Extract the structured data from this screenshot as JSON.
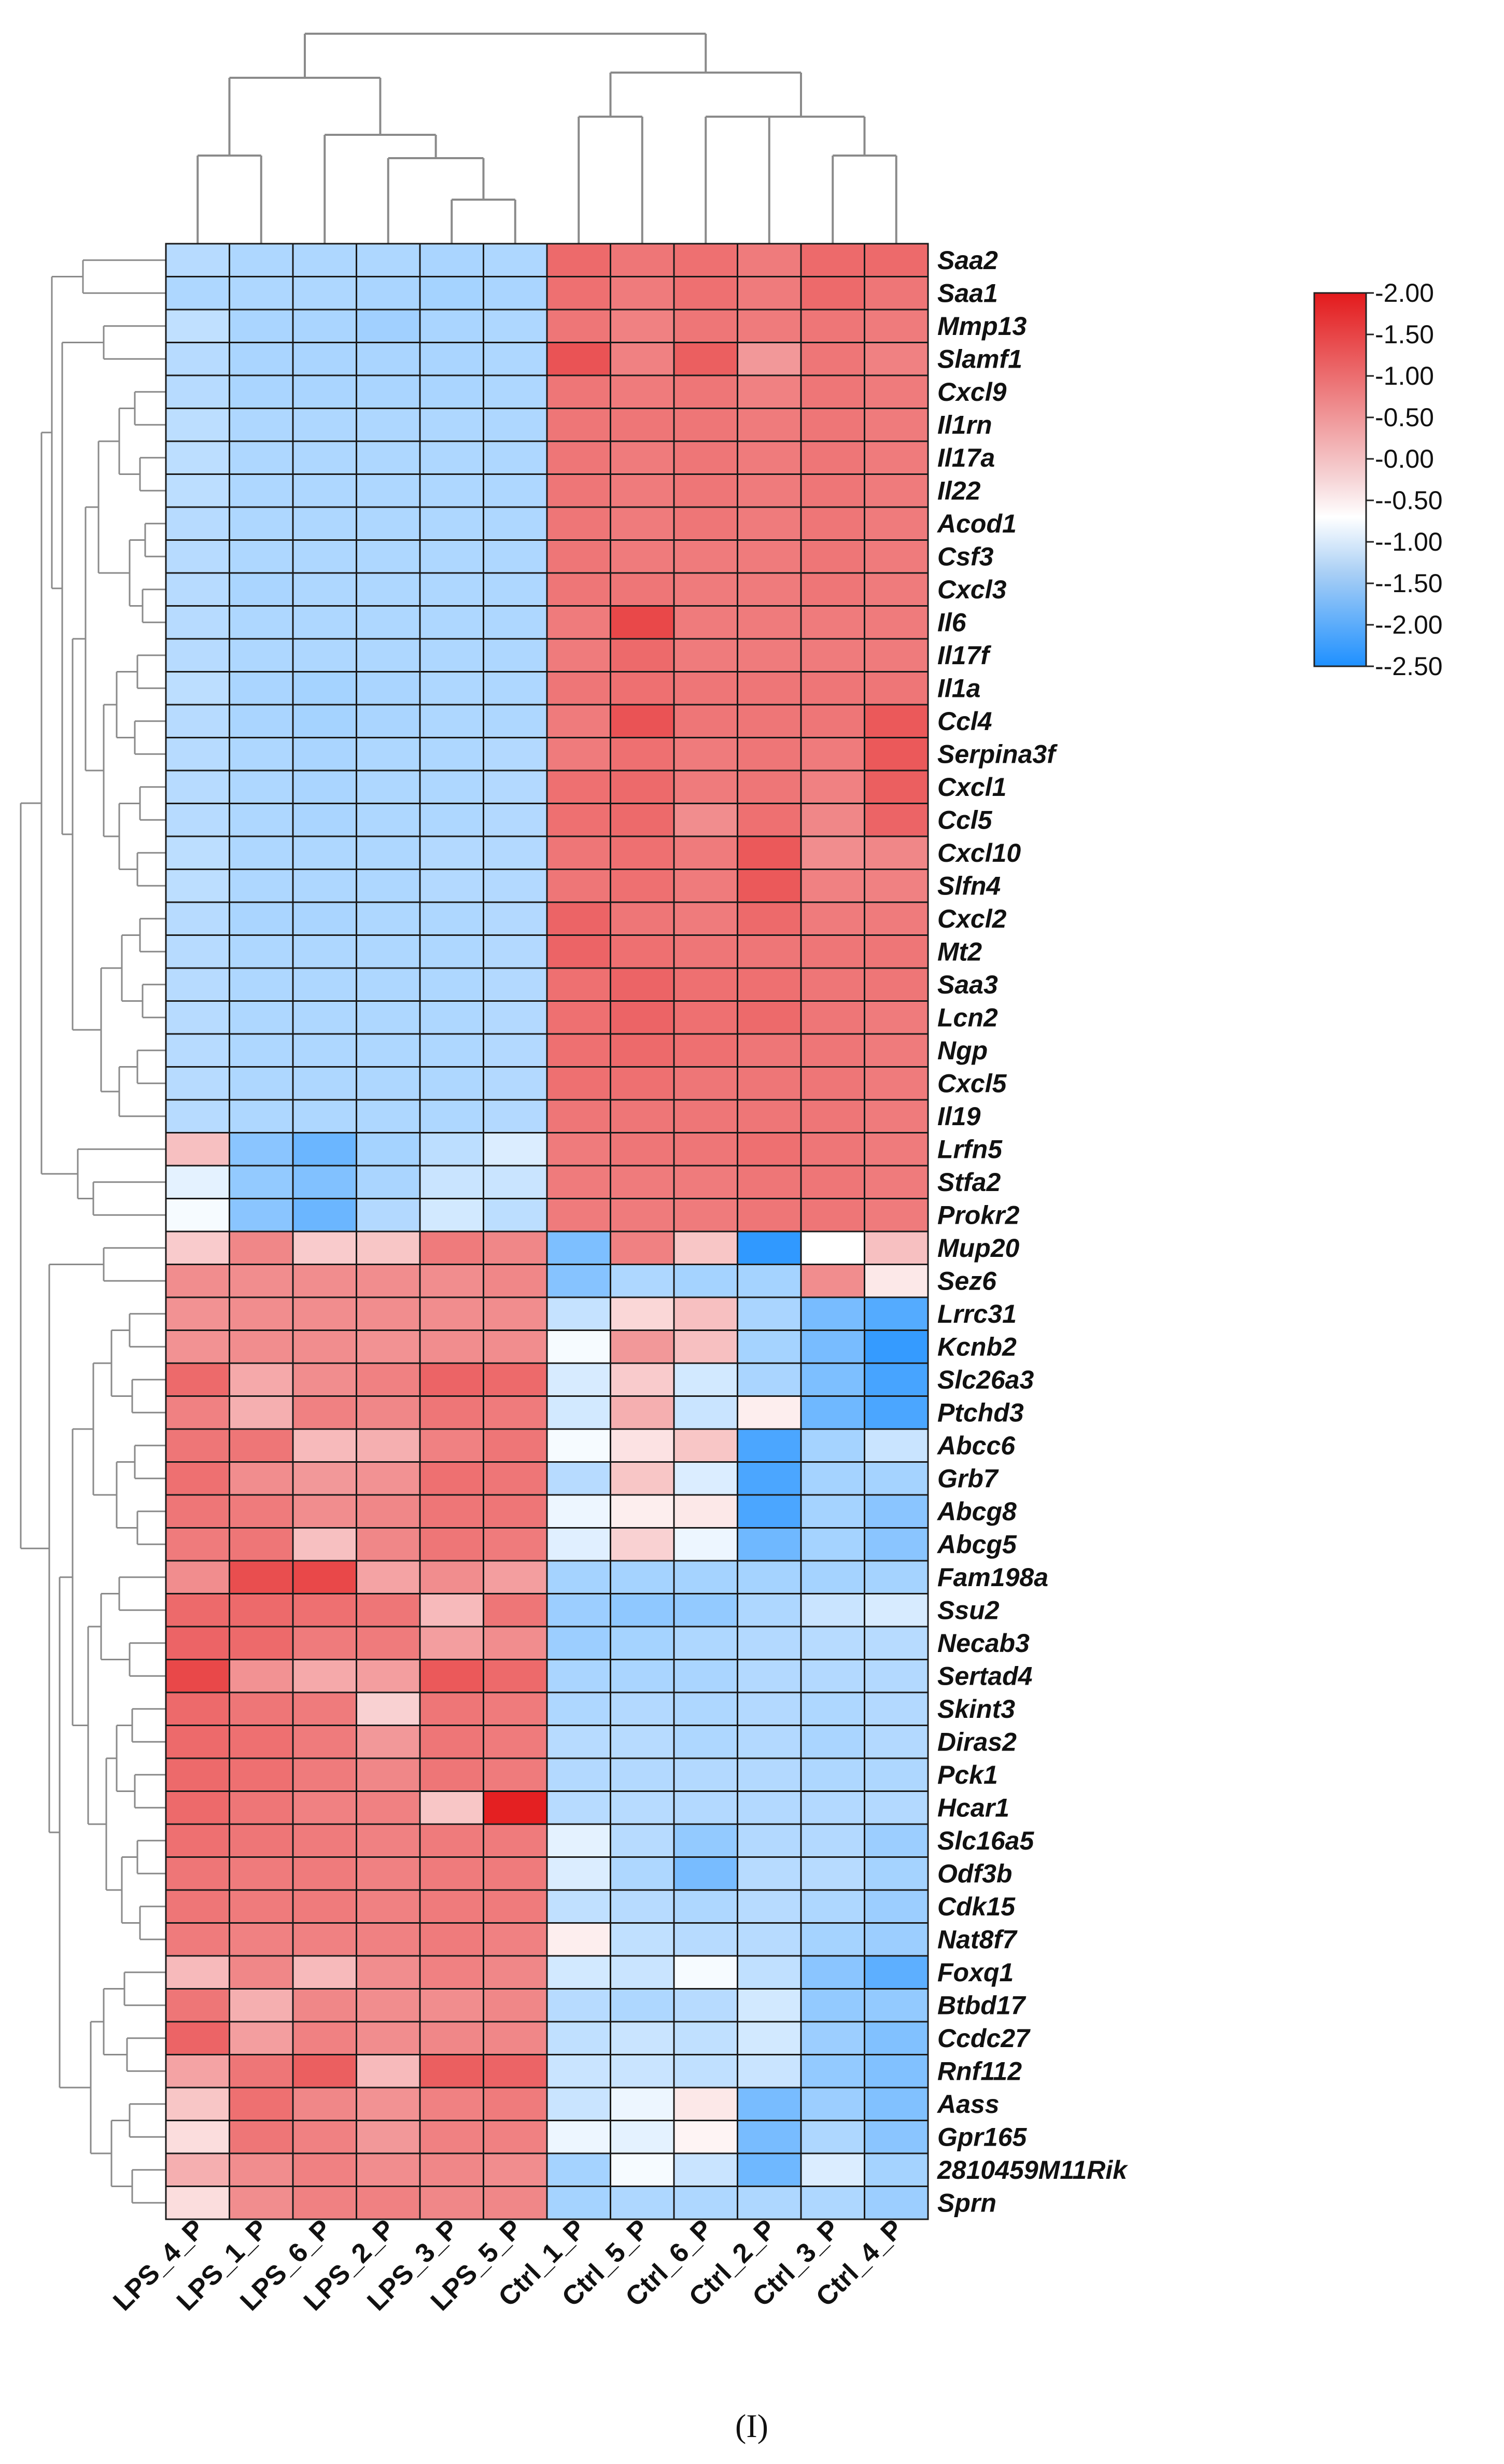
{
  "chart_data": {
    "type": "heatmap",
    "panel_label": "(I)",
    "columns": [
      "LPS_4_P",
      "LPS_1_P",
      "LPS_6_P",
      "LPS_2_P",
      "LPS_3_P",
      "LPS_5_P",
      "Ctrl_1_P",
      "Ctrl_5_P",
      "Ctrl_6_P",
      "Ctrl_2_P",
      "Ctrl_3_P",
      "Ctrl_4_P"
    ],
    "rows": [
      "Saa2",
      "Saa1",
      "Mmp13",
      "Slamf1",
      "Cxcl9",
      "Il1rn",
      "Il17a",
      "Il22",
      "Acod1",
      "Csf3",
      "Cxcl3",
      "Il6",
      "Il17f",
      "Il1a",
      "Ccl4",
      "Serpina3f",
      "Cxcl1",
      "Ccl5",
      "Cxcl10",
      "Slfn4",
      "Cxcl2",
      "Mt2",
      "Saa3",
      "Lcn2",
      "Ngp",
      "Cxcl5",
      "Il19",
      "Lrfn5",
      "Stfa2",
      "Prokr2",
      "Mup20",
      "Sez6",
      "Lrrc31",
      "Kcnb2",
      "Slc26a3",
      "Ptchd3",
      "Abcc6",
      "Grb7",
      "Abcg8",
      "Abcg5",
      "Fam198a",
      "Ssu2",
      "Necab3",
      "Sertad4",
      "Skint3",
      "Diras2",
      "Pck1",
      "Hcar1",
      "Slc16a5",
      "Odf3b",
      "Cdk15",
      "Nat8f7",
      "Foxq1",
      "Btbd17",
      "Ccdc27",
      "Rnf112",
      "Aass",
      "Gpr165",
      "2810459M11Rik",
      "Sprn"
    ],
    "values": [
      [
        -0.8,
        -0.9,
        -0.9,
        -0.9,
        -0.95,
        -0.9,
        1.3,
        1.2,
        1.25,
        1.15,
        1.3,
        1.3
      ],
      [
        -0.9,
        -0.9,
        -0.9,
        -0.95,
        -1.0,
        -0.95,
        1.25,
        1.15,
        1.25,
        1.15,
        1.3,
        1.2
      ],
      [
        -0.7,
        -0.95,
        -0.95,
        -1.05,
        -0.95,
        -0.9,
        1.2,
        1.1,
        1.2,
        1.15,
        1.2,
        1.15
      ],
      [
        -0.8,
        -0.95,
        -0.95,
        -0.95,
        -0.95,
        -0.9,
        1.5,
        1.1,
        1.4,
        0.9,
        1.2,
        1.1
      ],
      [
        -0.8,
        -0.95,
        -0.95,
        -0.95,
        -0.95,
        -0.9,
        1.2,
        1.15,
        1.2,
        1.1,
        1.2,
        1.15
      ],
      [
        -0.75,
        -0.9,
        -0.9,
        -0.9,
        -0.9,
        -0.9,
        1.2,
        1.2,
        1.2,
        1.15,
        1.2,
        1.15
      ],
      [
        -0.75,
        -0.9,
        -0.9,
        -0.9,
        -0.9,
        -0.9,
        1.2,
        1.15,
        1.2,
        1.15,
        1.2,
        1.15
      ],
      [
        -0.75,
        -0.9,
        -0.9,
        -0.9,
        -0.9,
        -0.9,
        1.2,
        1.15,
        1.2,
        1.15,
        1.2,
        1.15
      ],
      [
        -0.8,
        -0.9,
        -0.9,
        -0.9,
        -0.9,
        -0.9,
        1.2,
        1.15,
        1.2,
        1.15,
        1.2,
        1.15
      ],
      [
        -0.8,
        -0.9,
        -0.9,
        -0.9,
        -0.9,
        -0.9,
        1.2,
        1.15,
        1.15,
        1.15,
        1.2,
        1.15
      ],
      [
        -0.8,
        -0.95,
        -0.9,
        -0.9,
        -0.9,
        -0.9,
        1.2,
        1.2,
        1.15,
        1.15,
        1.2,
        1.15
      ],
      [
        -0.8,
        -0.9,
        -0.9,
        -0.9,
        -0.9,
        -0.9,
        1.15,
        1.6,
        1.15,
        1.15,
        1.15,
        1.15
      ],
      [
        -0.8,
        -0.9,
        -0.9,
        -0.9,
        -0.9,
        -0.9,
        1.15,
        1.3,
        1.15,
        1.15,
        1.15,
        1.15
      ],
      [
        -0.75,
        -0.95,
        -1.0,
        -0.95,
        -0.9,
        -0.9,
        1.2,
        1.25,
        1.2,
        1.2,
        1.2,
        1.2
      ],
      [
        -0.8,
        -0.95,
        -1.0,
        -0.95,
        -0.9,
        -0.9,
        1.15,
        1.5,
        1.2,
        1.2,
        1.2,
        1.45
      ],
      [
        -0.8,
        -0.9,
        -0.95,
        -0.9,
        -0.9,
        -0.85,
        1.15,
        1.25,
        1.15,
        1.2,
        1.15,
        1.45
      ],
      [
        -0.8,
        -0.9,
        -0.95,
        -0.9,
        -0.9,
        -0.85,
        1.25,
        1.3,
        1.15,
        1.2,
        1.1,
        1.4
      ],
      [
        -0.8,
        -0.9,
        -0.95,
        -0.9,
        -0.9,
        -0.85,
        1.25,
        1.3,
        1.0,
        1.25,
        1.05,
        1.35
      ],
      [
        -0.75,
        -0.9,
        -0.9,
        -0.9,
        -0.85,
        -0.85,
        1.2,
        1.25,
        1.15,
        1.45,
        1.0,
        1.05
      ],
      [
        -0.75,
        -0.9,
        -0.9,
        -0.9,
        -0.85,
        -0.85,
        1.2,
        1.25,
        1.15,
        1.45,
        1.1,
        1.1
      ],
      [
        -0.8,
        -0.95,
        -0.95,
        -0.9,
        -0.9,
        -0.85,
        1.35,
        1.2,
        1.15,
        1.3,
        1.15,
        1.15
      ],
      [
        -0.8,
        -0.9,
        -0.9,
        -0.9,
        -0.9,
        -0.85,
        1.35,
        1.25,
        1.2,
        1.2,
        1.2,
        1.2
      ],
      [
        -0.8,
        -0.9,
        -0.9,
        -0.9,
        -0.9,
        -0.85,
        1.25,
        1.35,
        1.25,
        1.25,
        1.2,
        1.2
      ],
      [
        -0.8,
        -0.9,
        -0.9,
        -0.9,
        -0.9,
        -0.85,
        1.25,
        1.35,
        1.25,
        1.3,
        1.2,
        1.15
      ],
      [
        -0.8,
        -0.9,
        -0.9,
        -0.9,
        -0.9,
        -0.85,
        1.25,
        1.3,
        1.25,
        1.2,
        1.2,
        1.15
      ],
      [
        -0.8,
        -0.9,
        -0.9,
        -0.9,
        -0.9,
        -0.85,
        1.25,
        1.25,
        1.2,
        1.2,
        1.2,
        1.15
      ],
      [
        -0.8,
        -0.9,
        -0.9,
        -0.9,
        -0.9,
        -0.85,
        1.2,
        1.2,
        1.2,
        1.2,
        1.2,
        1.15
      ],
      [
        0.55,
        -1.3,
        -1.65,
        -1.0,
        -0.75,
        -0.4,
        1.15,
        1.2,
        1.2,
        1.25,
        1.2,
        1.15
      ],
      [
        -0.3,
        -1.2,
        -1.4,
        -0.95,
        -0.6,
        -0.6,
        1.15,
        1.15,
        1.15,
        1.2,
        1.2,
        1.15
      ],
      [
        -0.1,
        -1.3,
        -1.65,
        -0.85,
        -0.5,
        -0.75,
        1.15,
        1.15,
        1.15,
        1.2,
        1.2,
        1.15
      ],
      [
        0.45,
        1.05,
        0.45,
        0.5,
        1.15,
        1.05,
        -1.45,
        1.1,
        0.5,
        -2.3,
        0.0,
        0.55
      ],
      [
        1.0,
        1.0,
        1.0,
        1.0,
        1.0,
        1.05,
        -1.35,
        -0.9,
        -1.0,
        -1.0,
        1.0,
        0.2
      ],
      [
        0.95,
        1.0,
        1.0,
        1.0,
        1.0,
        1.0,
        -0.65,
        0.35,
        0.55,
        -0.95,
        -1.5,
        -1.9
      ],
      [
        0.95,
        1.0,
        1.0,
        0.95,
        1.0,
        1.0,
        -0.1,
        0.9,
        0.55,
        -1.0,
        -1.5,
        -2.25
      ],
      [
        1.3,
        0.75,
        1.0,
        1.1,
        1.35,
        1.3,
        -0.45,
        0.45,
        -0.5,
        -0.95,
        -1.45,
        -2.05
      ],
      [
        1.1,
        0.7,
        1.1,
        1.05,
        1.2,
        1.15,
        -0.5,
        0.7,
        -0.6,
        0.15,
        -1.6,
        -2.0
      ],
      [
        1.2,
        1.2,
        0.6,
        0.7,
        1.1,
        1.2,
        -0.1,
        0.25,
        0.5,
        -2.0,
        -1.0,
        -0.6
      ],
      [
        1.25,
        1.0,
        0.9,
        0.95,
        1.25,
        1.2,
        -0.8,
        0.5,
        -0.4,
        -2.0,
        -1.0,
        -1.0
      ],
      [
        1.2,
        1.15,
        1.0,
        1.05,
        1.2,
        1.2,
        -0.2,
        0.15,
        0.2,
        -2.0,
        -1.0,
        -1.3
      ],
      [
        1.15,
        1.2,
        0.55,
        1.05,
        1.2,
        1.15,
        -0.35,
        0.4,
        -0.2,
        -1.6,
        -1.0,
        -1.3
      ],
      [
        1.0,
        1.55,
        1.6,
        0.8,
        1.0,
        0.85,
        -1.0,
        -1.0,
        -1.0,
        -1.0,
        -1.0,
        -1.0
      ],
      [
        1.3,
        1.3,
        1.25,
        1.2,
        0.6,
        1.2,
        -1.1,
        -1.25,
        -1.2,
        -0.9,
        -0.6,
        -0.45
      ],
      [
        1.35,
        1.3,
        1.15,
        1.15,
        0.85,
        1.0,
        -1.1,
        -1.0,
        -0.9,
        -0.85,
        -0.8,
        -0.8
      ],
      [
        1.6,
        0.95,
        0.75,
        0.85,
        1.45,
        1.3,
        -0.95,
        -0.95,
        -0.95,
        -0.85,
        -0.85,
        -0.85
      ],
      [
        1.3,
        1.2,
        1.15,
        0.4,
        1.2,
        1.15,
        -0.9,
        -0.85,
        -0.9,
        -0.85,
        -0.9,
        -0.85
      ],
      [
        1.3,
        1.25,
        1.15,
        0.9,
        1.2,
        1.15,
        -0.8,
        -0.8,
        -0.9,
        -0.85,
        -0.95,
        -0.85
      ],
      [
        1.3,
        1.25,
        1.15,
        1.05,
        1.2,
        1.15,
        -0.85,
        -0.85,
        -0.85,
        -0.85,
        -0.9,
        -0.9
      ],
      [
        1.3,
        1.2,
        1.1,
        1.1,
        0.5,
        1.95,
        -0.8,
        -0.8,
        -0.85,
        -0.85,
        -0.85,
        -0.85
      ],
      [
        1.25,
        1.2,
        1.15,
        1.1,
        1.15,
        1.15,
        -0.3,
        -0.8,
        -1.2,
        -0.85,
        -0.85,
        -1.1
      ],
      [
        1.2,
        1.15,
        1.15,
        1.1,
        1.15,
        1.15,
        -0.4,
        -0.9,
        -1.5,
        -0.8,
        -0.8,
        -1.0
      ],
      [
        1.2,
        1.15,
        1.15,
        1.1,
        1.15,
        1.15,
        -0.7,
        -0.8,
        -0.9,
        -0.8,
        -0.9,
        -1.1
      ],
      [
        1.15,
        1.1,
        1.1,
        1.1,
        1.15,
        1.1,
        0.15,
        -0.7,
        -0.8,
        -0.8,
        -1.0,
        -1.1
      ],
      [
        0.6,
        1.05,
        0.6,
        1.0,
        1.1,
        1.05,
        -0.5,
        -0.6,
        -0.1,
        -0.7,
        -1.3,
        -1.8
      ],
      [
        1.2,
        0.7,
        1.05,
        1.0,
        1.0,
        1.05,
        -0.8,
        -0.9,
        -0.8,
        -0.5,
        -1.2,
        -1.2
      ],
      [
        1.35,
        0.85,
        1.1,
        1.0,
        1.05,
        1.05,
        -0.7,
        -0.6,
        -0.7,
        -0.5,
        -1.1,
        -1.4
      ],
      [
        0.8,
        1.2,
        1.4,
        0.6,
        1.4,
        1.35,
        -0.6,
        -0.6,
        -0.7,
        -0.6,
        -1.2,
        -1.4
      ],
      [
        0.5,
        1.25,
        1.05,
        0.95,
        1.1,
        1.15,
        -0.6,
        -0.2,
        0.2,
        -1.5,
        -1.1,
        -1.4
      ],
      [
        0.3,
        1.2,
        1.1,
        0.9,
        1.1,
        1.1,
        -0.2,
        -0.3,
        0.1,
        -1.5,
        -0.9,
        -1.3
      ],
      [
        0.7,
        1.0,
        1.1,
        1.0,
        1.05,
        1.0,
        -1.0,
        -0.1,
        -0.6,
        -1.6,
        -0.4,
        -1.0
      ],
      [
        0.3,
        1.0,
        1.1,
        1.1,
        1.05,
        1.05,
        -1.0,
        -0.9,
        -0.9,
        -0.9,
        -0.9,
        -1.1
      ]
    ],
    "legend": {
      "tick_labels": [
        "-2.00",
        "-1.50",
        "-1.00",
        "-0.50",
        "-0.00",
        "--0.50",
        "--1.00",
        "--1.50",
        "--2.00",
        "--2.50"
      ],
      "range": [
        -2.5,
        2.0
      ],
      "colors": {
        "high": "#E31A1C",
        "mid": "#FFFFFF",
        "low": "#1E90FF"
      }
    },
    "dendrogram_color": "#8a8a8a",
    "cell_border_color": "#1a1a1a"
  }
}
